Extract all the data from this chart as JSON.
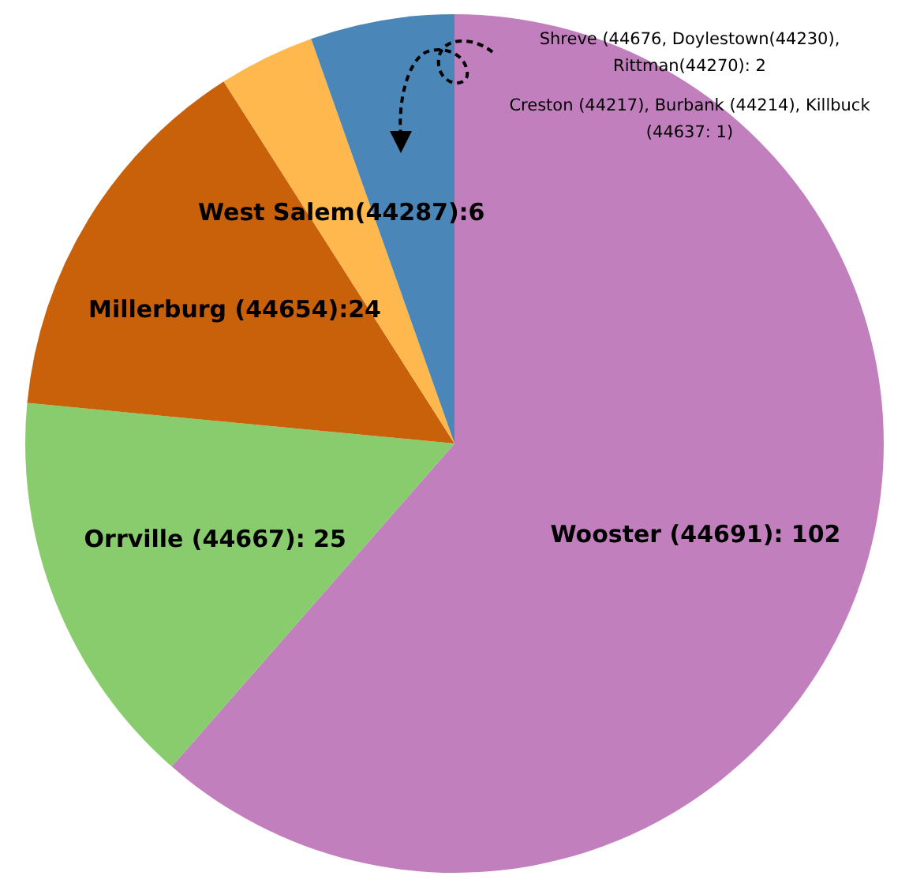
{
  "chart_data": {
    "type": "pie",
    "categories": [
      "Wooster (44691): 102",
      "Orrville (44667): 25",
      "Millerburg (44654):24",
      "West Salem(44287):6",
      null
    ],
    "values": [
      102,
      25,
      24,
      6,
      9
    ],
    "colors": [
      "#c27fbd",
      "#88cc6e",
      "#c9610a",
      "#ffb84d",
      "#4a87b8"
    ],
    "annotations": [
      "Shreve (44676, Doylestown(44230), Rittman(44270): 2",
      "Creston (44217), Burbank (44214), Killbuck (44637: 1)"
    ],
    "legend": false
  }
}
